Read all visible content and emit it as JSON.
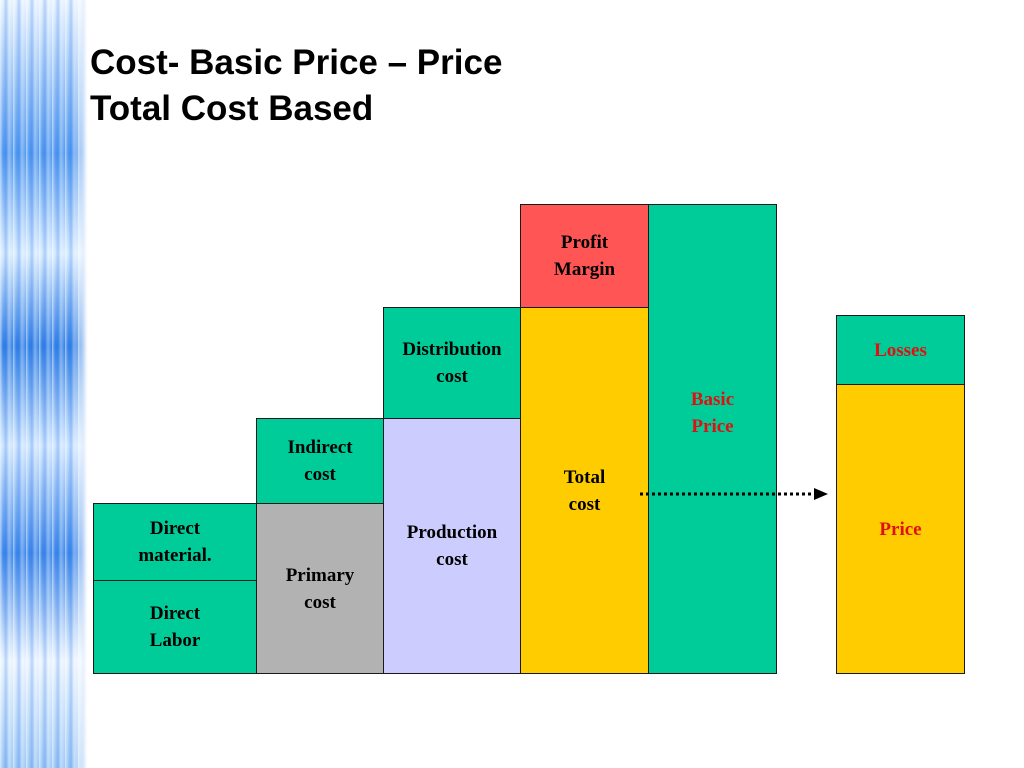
{
  "slide": {
    "title_line1": "Cost- Basic Price – Price",
    "title_line2": "Total Cost Based"
  },
  "boxes": {
    "direct_material": "Direct\nmaterial.",
    "direct_labor": "Direct\nLabor",
    "indirect_cost": "Indirect\ncost",
    "primary_cost": "Primary\ncost",
    "distribution_cost": "Distribution\ncost",
    "production_cost": "Production\ncost",
    "profit_margin": "Profit\nMargin",
    "total_cost": "Total\ncost",
    "basic_price": "Basic\nPrice",
    "losses": "Losses",
    "price": "Price"
  },
  "colors": {
    "green": "#00cc99",
    "red": "#ff5555",
    "yellow": "#ffcc00",
    "gray": "#b2b2b2",
    "lavender": "#ccccff",
    "label_red": "#e01010"
  }
}
